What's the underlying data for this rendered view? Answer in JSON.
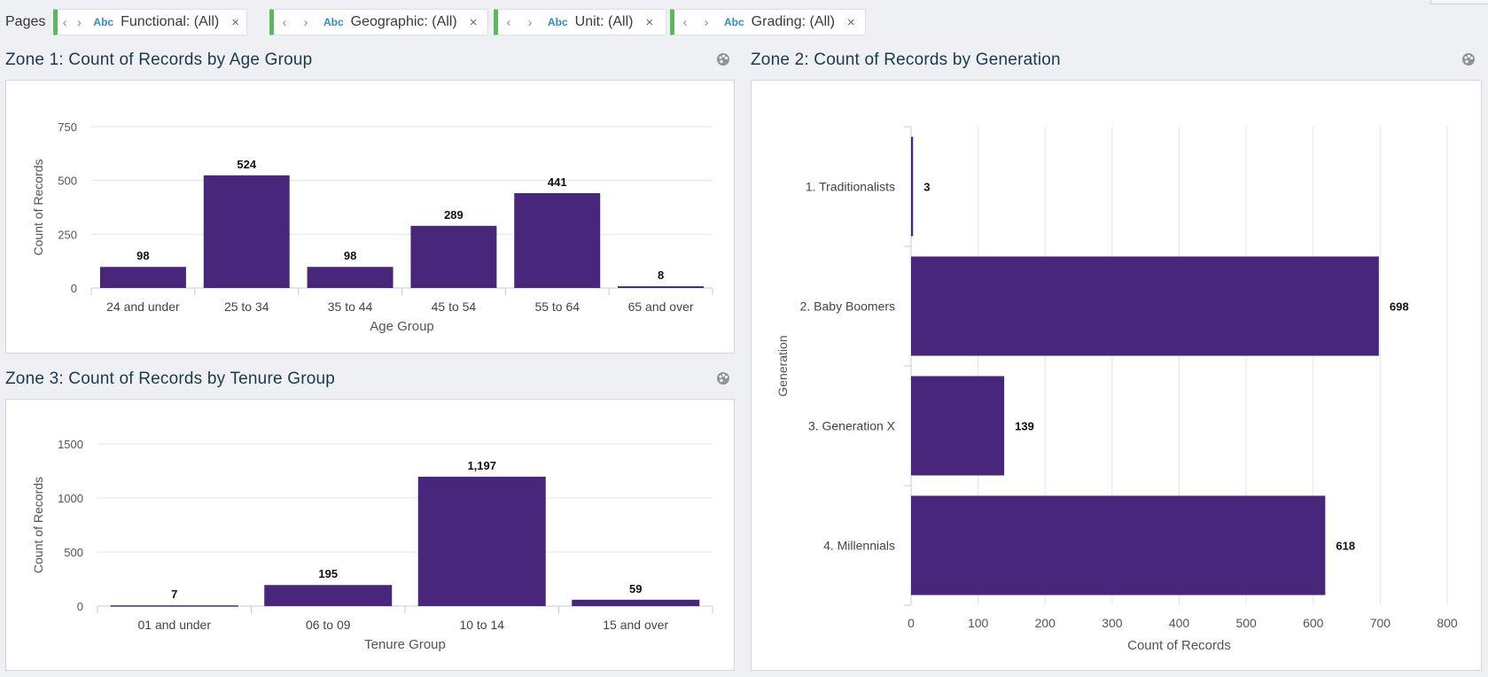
{
  "pages": {
    "label": "Pages",
    "filters": [
      {
        "icon": "Abc",
        "label": "Functional: (All)"
      },
      {
        "icon": "Abc",
        "label": "Geographic: (All)"
      },
      {
        "icon": "Abc",
        "label": "Unit: (All)"
      },
      {
        "icon": "Abc",
        "label": "Grading: (All)"
      }
    ],
    "close_glyph": "×",
    "prev_glyph": "‹",
    "next_glyph": "›"
  },
  "zones": {
    "zone1_title": "Zone 1: Count of Records by Age Group",
    "zone2_title": "Zone 2: Count of Records by Generation",
    "zone3_title": "Zone 3: Count of Records by Tenure Group"
  },
  "colors": {
    "bar": "#48267b",
    "grid": "#e3e5e9",
    "axis": "#c7cbd1",
    "filter_accent": "#5cb85c"
  },
  "chart_data": [
    {
      "type": "bar",
      "title": "Zone 1: Count of Records by Age Group",
      "categories": [
        "24 and under",
        "25 to 34",
        "35 to 44",
        "45 to 54",
        "55 to 64",
        "65 and over"
      ],
      "values": [
        98,
        524,
        98,
        289,
        441,
        8
      ],
      "labels": [
        "98",
        "524",
        "98",
        "289",
        "441",
        "8"
      ],
      "xlabel": "Age Group",
      "ylabel": "Count of Records",
      "ylim": [
        0,
        750
      ],
      "yticks": [
        0,
        250,
        500,
        750
      ],
      "ytick_labels": [
        "0",
        "250",
        "500",
        "750"
      ],
      "grid": true
    },
    {
      "type": "bar",
      "orientation": "horizontal",
      "title": "Zone 2: Count of Records by Generation",
      "categories": [
        "1. Traditionalists",
        "2. Baby Boomers",
        "3. Generation X",
        "4. Millennials"
      ],
      "values": [
        3,
        698,
        139,
        618
      ],
      "labels": [
        "3",
        "698",
        "139",
        "618"
      ],
      "xlabel": "Count of Records",
      "ylabel": "Generation",
      "xlim": [
        0,
        800
      ],
      "xticks": [
        0,
        100,
        200,
        300,
        400,
        500,
        600,
        700,
        800
      ],
      "xtick_labels": [
        "0",
        "100",
        "200",
        "300",
        "400",
        "500",
        "600",
        "700",
        "800"
      ],
      "grid": true
    },
    {
      "type": "bar",
      "title": "Zone 3: Count of Records by Tenure Group",
      "categories": [
        "01 and under",
        "06 to 09",
        "10 to 14",
        "15 and over"
      ],
      "values": [
        7,
        195,
        1197,
        59
      ],
      "labels": [
        "7",
        "195",
        "1,197",
        "59"
      ],
      "xlabel": "Tenure Group",
      "ylabel": "Count of Records",
      "ylim": [
        0,
        1500
      ],
      "yticks": [
        0,
        500,
        1000,
        1500
      ],
      "ytick_labels": [
        "0",
        "500",
        "1000",
        "1500"
      ],
      "grid": true
    }
  ]
}
